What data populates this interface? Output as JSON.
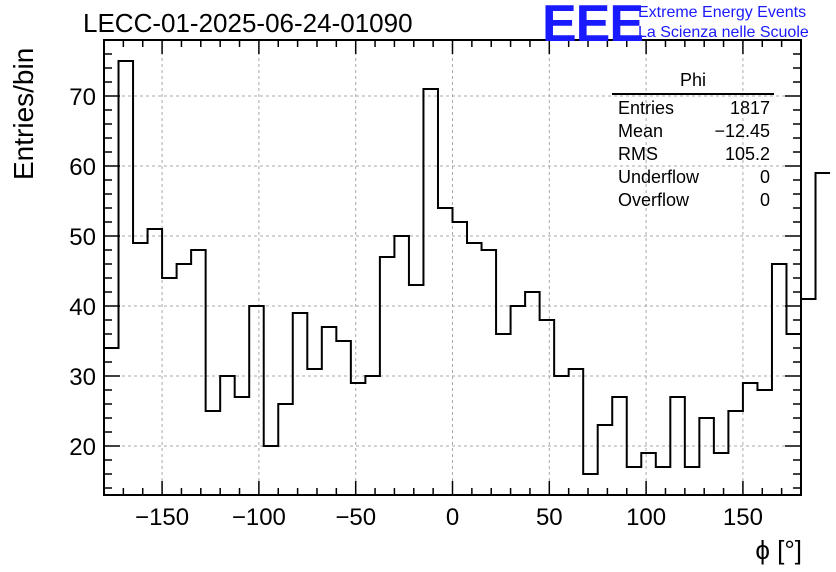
{
  "title": "LECC-01-2025-06-24-01090",
  "brand": {
    "logo": "EEE",
    "line1": "Extreme Energy Events",
    "line2": "La Scienza nelle Scuole"
  },
  "stats": {
    "name": "Phi",
    "rows": [
      {
        "label": "Entries",
        "value": "1817"
      },
      {
        "label": "Mean",
        "value": "−12.45"
      },
      {
        "label": "RMS",
        "value": "105.2"
      },
      {
        "label": "Underflow",
        "value": "0"
      },
      {
        "label": "Overflow",
        "value": "0"
      }
    ]
  },
  "chart_data": {
    "type": "bar",
    "style": "step-histogram",
    "xlabel": "ϕ [°]",
    "ylabel": "Entries/bin",
    "xlim": [
      -180,
      180
    ],
    "ylim": [
      13,
      78
    ],
    "grid": true,
    "xticks": [
      -150,
      -100,
      -50,
      0,
      50,
      100,
      150
    ],
    "xtick_labels": [
      "−150",
      "−100",
      "−50",
      "0",
      "50",
      "100",
      "150"
    ],
    "yticks": [
      20,
      30,
      40,
      50,
      60,
      70
    ],
    "bin_width": 7.5,
    "bin_edges_start": -180,
    "values": [
      34,
      75,
      49,
      51,
      44,
      46,
      48,
      25,
      30,
      27,
      40,
      20,
      26,
      39,
      31,
      37,
      35,
      29,
      30,
      47,
      50,
      43,
      71,
      54,
      52,
      49,
      48,
      36,
      40,
      42,
      38,
      30,
      31,
      16,
      23,
      27,
      17,
      19,
      17,
      27,
      17,
      24,
      19,
      25,
      29,
      28,
      46,
      36,
      41,
      59
    ]
  }
}
